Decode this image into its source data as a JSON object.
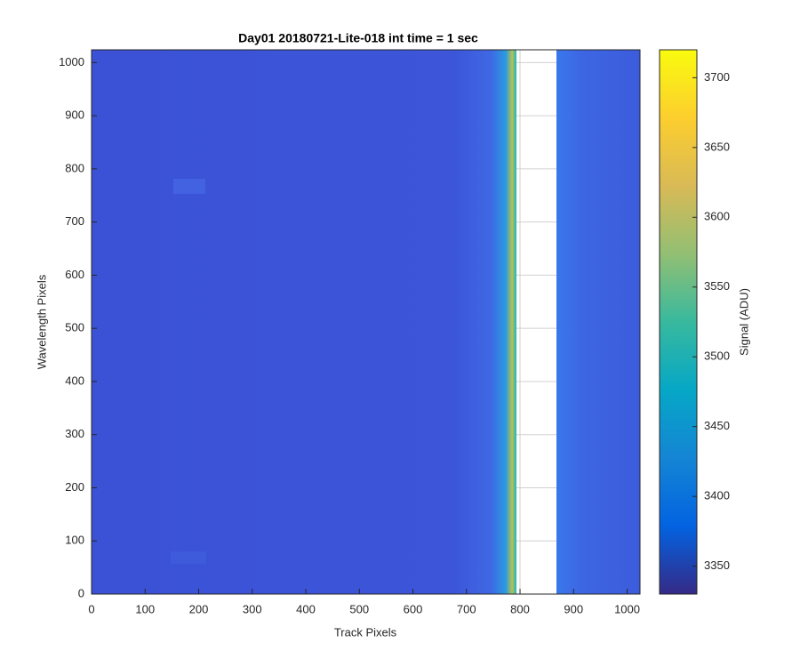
{
  "chart_data": {
    "type": "heatmap",
    "title": "Day01 20180721-Lite-018 int time = 1 sec",
    "xlabel": "Track Pixels",
    "ylabel": "Wavelength Pixels",
    "xlim": [
      0,
      1024
    ],
    "ylim": [
      0,
      1024
    ],
    "xticks": [
      0,
      100,
      200,
      300,
      400,
      500,
      600,
      700,
      800,
      900,
      1000
    ],
    "yticks": [
      0,
      100,
      200,
      300,
      400,
      500,
      600,
      700,
      800,
      900,
      1000
    ],
    "grid": true,
    "colormap": "parula",
    "colorbar": {
      "label": "Signal (ADU)",
      "lim": [
        3330,
        3720
      ],
      "ticks": [
        3350,
        3400,
        3450,
        3500,
        3550,
        3600,
        3650,
        3700
      ]
    }
  }
}
